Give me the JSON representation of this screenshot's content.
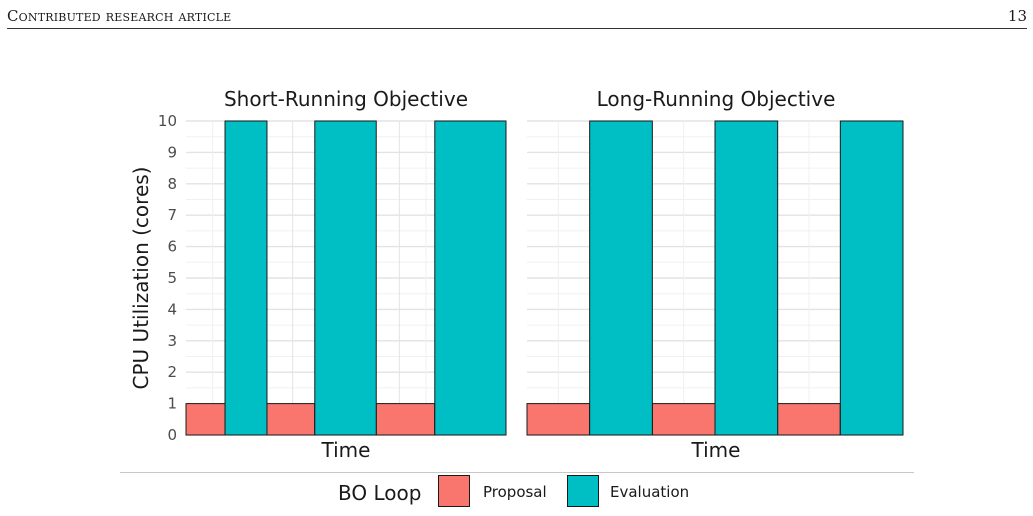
{
  "page": {
    "running_head": "Contributed research article",
    "page_number": "13"
  },
  "chart_data": {
    "type": "bar",
    "ylabel": "CPU Utilization (cores)",
    "ylim": [
      0,
      10
    ],
    "yticks": [
      "0",
      "1",
      "2",
      "3",
      "4",
      "5",
      "6",
      "7",
      "8",
      "9",
      "10"
    ],
    "grid": true,
    "legend": {
      "title": "BO Loop",
      "placement": "bottom",
      "entries": [
        {
          "label": "Proposal",
          "color": "#F8766D"
        },
        {
          "label": "Evaluation",
          "color": "#00BFC4"
        }
      ]
    },
    "panels": [
      {
        "title": "Short-Running Objective",
        "xlabel": "Time",
        "series": [
          {
            "name": "Proposal",
            "cores": 1,
            "intervals": [
              [
                0,
                4.0
              ],
              [
                4.0,
                8.3
              ],
              [
                8.3,
                13.2
              ],
              [
                13.2,
                19.5
              ],
              [
                19.5,
                25.5
              ],
              [
                25.5,
                32.8
              ]
            ]
          },
          {
            "name": "Evaluation",
            "cores": 10,
            "intervals": [
              [
                4.0,
                8.3
              ],
              [
                13.2,
                19.5
              ],
              [
                25.5,
                32.8
              ]
            ]
          }
        ]
      },
      {
        "title": "Long-Running Objective",
        "xlabel": "Time",
        "series": [
          {
            "name": "Proposal",
            "cores": 1,
            "intervals": [
              [
                0,
                1
              ],
              [
                1,
                2
              ],
              [
                2,
                3
              ],
              [
                3,
                4
              ],
              [
                4,
                5
              ],
              [
                5,
                6
              ]
            ]
          },
          {
            "name": "Evaluation",
            "cores": 10,
            "intervals": [
              [
                1,
                2
              ],
              [
                3,
                4
              ],
              [
                5,
                6
              ]
            ]
          }
        ]
      }
    ]
  }
}
